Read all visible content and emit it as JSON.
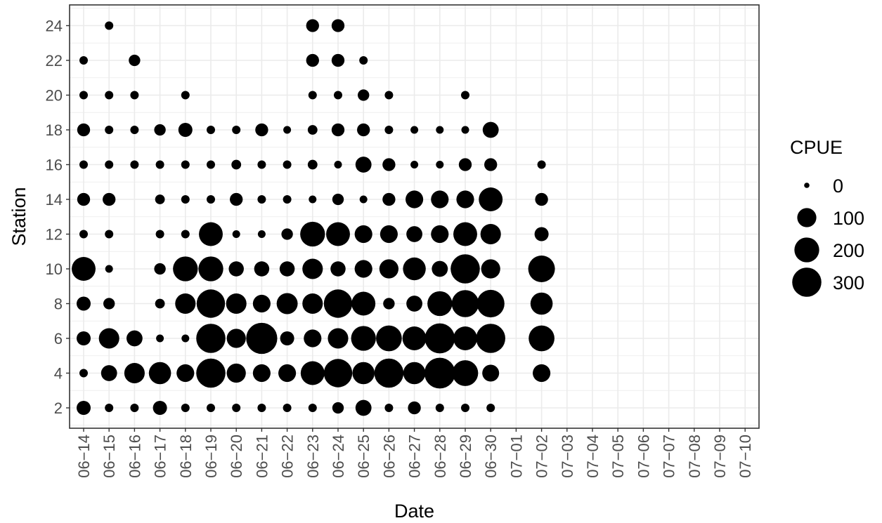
{
  "chart_data": {
    "type": "scatter",
    "subtype": "bubble",
    "xlabel": "Date",
    "ylabel": "Station",
    "x_categories": [
      "06-14",
      "06-15",
      "06-16",
      "06-17",
      "06-18",
      "06-19",
      "06-20",
      "06-21",
      "06-22",
      "06-23",
      "06-24",
      "06-25",
      "06-26",
      "06-27",
      "06-28",
      "06-29",
      "06-30",
      "07-01",
      "07-02",
      "07-03",
      "07-04",
      "07-05",
      "07-06",
      "07-07",
      "07-08",
      "07-09",
      "07-10"
    ],
    "x_tick_labels": [
      "06−14",
      "06−15",
      "06−16",
      "06−17",
      "06−18",
      "06−19",
      "06−20",
      "06−21",
      "06−22",
      "06−23",
      "06−24",
      "06−25",
      "06−26",
      "06−27",
      "06−28",
      "06−29",
      "06−30",
      "07−01",
      "07−02",
      "07−03",
      "07−04",
      "07−05",
      "07−06",
      "07−07",
      "07−08",
      "07−09",
      "07−10"
    ],
    "y_ticks": [
      "2",
      "4",
      "6",
      "8",
      "10",
      "12",
      "14",
      "16",
      "18",
      "20",
      "22",
      "24"
    ],
    "ylim": [
      1,
      25
    ],
    "size_variable": "CPUE",
    "legend": {
      "title": "CPUE",
      "position": "right",
      "entries": [
        {
          "label": "0",
          "value": 0
        },
        {
          "label": "100",
          "value": 100
        },
        {
          "label": "200",
          "value": 200
        },
        {
          "label": "300",
          "value": 300
        }
      ]
    },
    "grid": true,
    "colors": {
      "point": "#000000",
      "grid": "#ebebeb",
      "panel_border": "#333333"
    },
    "columns": [
      "date",
      "station",
      "cpue"
    ],
    "points": [
      [
        "06-14",
        2,
        40
      ],
      [
        "06-14",
        4,
        5
      ],
      [
        "06-14",
        6,
        40
      ],
      [
        "06-14",
        8,
        40
      ],
      [
        "06-14",
        10,
        180
      ],
      [
        "06-14",
        12,
        5
      ],
      [
        "06-14",
        14,
        30
      ],
      [
        "06-14",
        16,
        5
      ],
      [
        "06-14",
        18,
        30
      ],
      [
        "06-14",
        20,
        5
      ],
      [
        "06-14",
        22,
        5
      ],
      [
        "06-15",
        2,
        5
      ],
      [
        "06-15",
        4,
        60
      ],
      [
        "06-15",
        6,
        120
      ],
      [
        "06-15",
        8,
        20
      ],
      [
        "06-15",
        10,
        3
      ],
      [
        "06-15",
        12,
        5
      ],
      [
        "06-15",
        14,
        30
      ],
      [
        "06-15",
        16,
        5
      ],
      [
        "06-15",
        18,
        5
      ],
      [
        "06-15",
        20,
        5
      ],
      [
        "06-15",
        24,
        5
      ],
      [
        "06-16",
        2,
        5
      ],
      [
        "06-16",
        4,
        120
      ],
      [
        "06-16",
        6,
        60
      ],
      [
        "06-16",
        16,
        5
      ],
      [
        "06-16",
        18,
        5
      ],
      [
        "06-16",
        20,
        5
      ],
      [
        "06-16",
        22,
        20
      ],
      [
        "06-17",
        2,
        40
      ],
      [
        "06-17",
        4,
        150
      ],
      [
        "06-17",
        6,
        3
      ],
      [
        "06-17",
        8,
        10
      ],
      [
        "06-17",
        10,
        20
      ],
      [
        "06-17",
        12,
        5
      ],
      [
        "06-17",
        14,
        10
      ],
      [
        "06-17",
        16,
        5
      ],
      [
        "06-17",
        18,
        20
      ],
      [
        "06-18",
        2,
        5
      ],
      [
        "06-18",
        4,
        80
      ],
      [
        "06-18",
        6,
        3
      ],
      [
        "06-18",
        8,
        120
      ],
      [
        "06-18",
        10,
        200
      ],
      [
        "06-18",
        12,
        5
      ],
      [
        "06-18",
        14,
        5
      ],
      [
        "06-18",
        16,
        5
      ],
      [
        "06-18",
        18,
        40
      ],
      [
        "06-18",
        20,
        5
      ],
      [
        "06-19",
        2,
        5
      ],
      [
        "06-19",
        4,
        300
      ],
      [
        "06-19",
        6,
        300
      ],
      [
        "06-19",
        8,
        280
      ],
      [
        "06-19",
        10,
        200
      ],
      [
        "06-19",
        12,
        180
      ],
      [
        "06-19",
        14,
        5
      ],
      [
        "06-19",
        16,
        5
      ],
      [
        "06-19",
        18,
        5
      ],
      [
        "06-20",
        2,
        5
      ],
      [
        "06-20",
        4,
        100
      ],
      [
        "06-20",
        6,
        100
      ],
      [
        "06-20",
        8,
        120
      ],
      [
        "06-20",
        10,
        50
      ],
      [
        "06-20",
        12,
        3
      ],
      [
        "06-20",
        14,
        30
      ],
      [
        "06-20",
        16,
        10
      ],
      [
        "06-20",
        18,
        5
      ],
      [
        "06-21",
        2,
        5
      ],
      [
        "06-21",
        4,
        80
      ],
      [
        "06-21",
        6,
        350
      ],
      [
        "06-21",
        8,
        80
      ],
      [
        "06-21",
        10,
        50
      ],
      [
        "06-21",
        12,
        3
      ],
      [
        "06-21",
        14,
        5
      ],
      [
        "06-21",
        16,
        5
      ],
      [
        "06-21",
        18,
        30
      ],
      [
        "06-22",
        2,
        5
      ],
      [
        "06-22",
        4,
        80
      ],
      [
        "06-22",
        6,
        40
      ],
      [
        "06-22",
        8,
        130
      ],
      [
        "06-22",
        10,
        50
      ],
      [
        "06-22",
        12,
        20
      ],
      [
        "06-22",
        14,
        5
      ],
      [
        "06-22",
        16,
        5
      ],
      [
        "06-22",
        18,
        3
      ],
      [
        "06-23",
        2,
        5
      ],
      [
        "06-23",
        4,
        180
      ],
      [
        "06-23",
        6,
        80
      ],
      [
        "06-23",
        8,
        120
      ],
      [
        "06-23",
        10,
        120
      ],
      [
        "06-23",
        12,
        200
      ],
      [
        "06-23",
        14,
        3
      ],
      [
        "06-23",
        16,
        10
      ],
      [
        "06-23",
        18,
        10
      ],
      [
        "06-23",
        20,
        5
      ],
      [
        "06-23",
        22,
        30
      ],
      [
        "06-23",
        24,
        30
      ],
      [
        "06-24",
        2,
        20
      ],
      [
        "06-24",
        4,
        280
      ],
      [
        "06-24",
        6,
        120
      ],
      [
        "06-24",
        8,
        280
      ],
      [
        "06-24",
        10,
        50
      ],
      [
        "06-24",
        12,
        180
      ],
      [
        "06-24",
        14,
        20
      ],
      [
        "06-24",
        16,
        3
      ],
      [
        "06-24",
        18,
        30
      ],
      [
        "06-24",
        20,
        5
      ],
      [
        "06-24",
        22,
        30
      ],
      [
        "06-24",
        24,
        30
      ],
      [
        "06-25",
        2,
        60
      ],
      [
        "06-25",
        4,
        150
      ],
      [
        "06-25",
        6,
        200
      ],
      [
        "06-25",
        8,
        180
      ],
      [
        "06-25",
        10,
        80
      ],
      [
        "06-25",
        12,
        80
      ],
      [
        "06-25",
        14,
        3
      ],
      [
        "06-25",
        16,
        60
      ],
      [
        "06-25",
        18,
        30
      ],
      [
        "06-25",
        20,
        20
      ],
      [
        "06-25",
        22,
        5
      ],
      [
        "06-26",
        2,
        5
      ],
      [
        "06-26",
        4,
        300
      ],
      [
        "06-26",
        6,
        220
      ],
      [
        "06-26",
        8,
        20
      ],
      [
        "06-26",
        10,
        100
      ],
      [
        "06-26",
        12,
        80
      ],
      [
        "06-26",
        14,
        30
      ],
      [
        "06-26",
        16,
        30
      ],
      [
        "06-26",
        18,
        5
      ],
      [
        "06-26",
        20,
        5
      ],
      [
        "06-27",
        2,
        30
      ],
      [
        "06-27",
        4,
        150
      ],
      [
        "06-27",
        6,
        180
      ],
      [
        "06-27",
        8,
        60
      ],
      [
        "06-27",
        10,
        160
      ],
      [
        "06-27",
        12,
        60
      ],
      [
        "06-27",
        14,
        80
      ],
      [
        "06-27",
        16,
        3
      ],
      [
        "06-27",
        18,
        3
      ],
      [
        "06-28",
        2,
        5
      ],
      [
        "06-28",
        4,
        340
      ],
      [
        "06-28",
        6,
        320
      ],
      [
        "06-28",
        8,
        200
      ],
      [
        "06-28",
        10,
        60
      ],
      [
        "06-28",
        12,
        80
      ],
      [
        "06-28",
        14,
        80
      ],
      [
        "06-28",
        16,
        3
      ],
      [
        "06-28",
        18,
        3
      ],
      [
        "06-29",
        2,
        5
      ],
      [
        "06-29",
        4,
        220
      ],
      [
        "06-29",
        6,
        180
      ],
      [
        "06-29",
        8,
        250
      ],
      [
        "06-29",
        10,
        300
      ],
      [
        "06-29",
        12,
        180
      ],
      [
        "06-29",
        14,
        80
      ],
      [
        "06-29",
        16,
        30
      ],
      [
        "06-29",
        18,
        3
      ],
      [
        "06-29",
        20,
        5
      ],
      [
        "06-30",
        2,
        5
      ],
      [
        "06-30",
        4,
        70
      ],
      [
        "06-30",
        6,
        300
      ],
      [
        "06-30",
        8,
        260
      ],
      [
        "06-30",
        10,
        100
      ],
      [
        "06-30",
        12,
        120
      ],
      [
        "06-30",
        14,
        180
      ],
      [
        "06-30",
        16,
        30
      ],
      [
        "06-30",
        18,
        60
      ],
      [
        "07-02",
        4,
        80
      ],
      [
        "07-02",
        6,
        220
      ],
      [
        "07-02",
        8,
        150
      ],
      [
        "07-02",
        10,
        240
      ],
      [
        "07-02",
        12,
        40
      ],
      [
        "07-02",
        14,
        30
      ],
      [
        "07-02",
        16,
        5
      ]
    ]
  }
}
